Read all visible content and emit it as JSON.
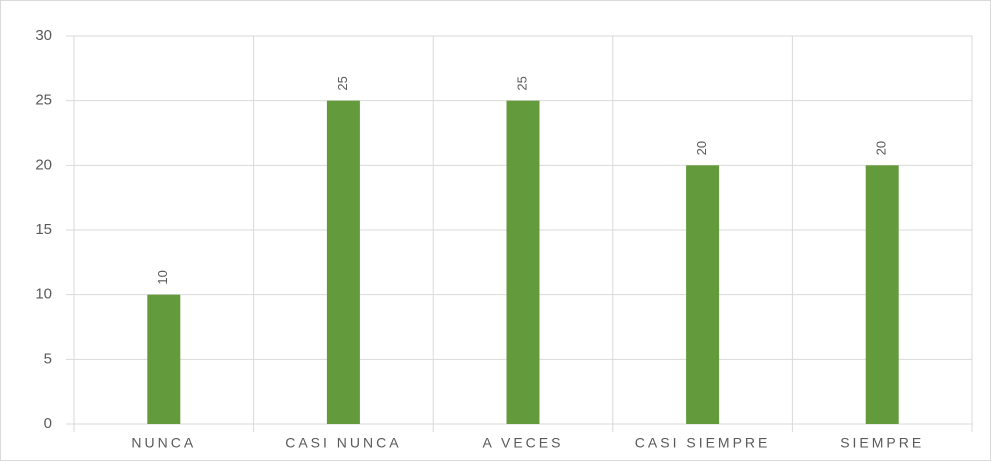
{
  "chart_data": {
    "type": "bar",
    "categories": [
      "NUNCA",
      "CASI NUNCA",
      "A VECES",
      "CASI SIEMPRE",
      "SIEMPRE"
    ],
    "values": [
      10,
      25,
      25,
      20,
      20
    ],
    "color": "#639a3c",
    "ylim": [
      0,
      30
    ],
    "yticks": [
      0,
      5,
      10,
      15,
      20,
      25,
      30
    ],
    "grid": true
  }
}
